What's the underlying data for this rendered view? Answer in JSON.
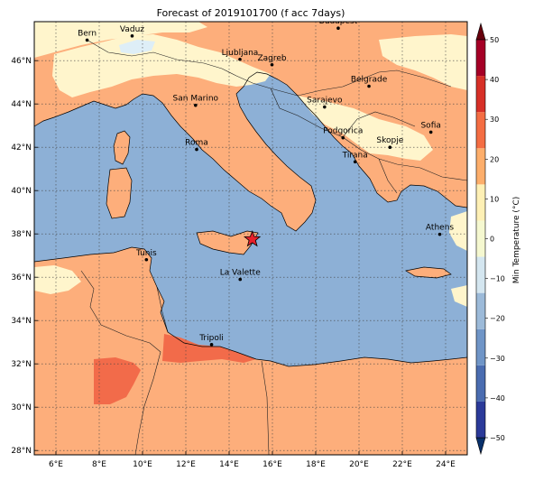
{
  "title": "Forecast of 2019101700 (f acc 7days)",
  "map": {
    "lon_ticks": [
      "6°E",
      "8°E",
      "10°E",
      "12°E",
      "14°E",
      "16°E",
      "18°E",
      "20°E",
      "22°E",
      "24°E"
    ],
    "lat_ticks": [
      "46°N",
      "44°N",
      "42°N",
      "40°N",
      "38°N",
      "36°N",
      "34°N",
      "32°N",
      "30°N",
      "28°N"
    ],
    "extent": {
      "lon_min": 5,
      "lon_max": 25,
      "lat_min": 27.8,
      "lat_max": 47.8
    },
    "cities": [
      {
        "name": "Bern",
        "lon": 7.44,
        "lat": 46.95
      },
      {
        "name": "Vaduz",
        "lon": 9.52,
        "lat": 47.14
      },
      {
        "name": "Budapest",
        "lon": 19.04,
        "lat": 47.5
      },
      {
        "name": "Ljubljana",
        "lon": 14.5,
        "lat": 46.06
      },
      {
        "name": "Zagreb",
        "lon": 15.98,
        "lat": 45.81
      },
      {
        "name": "Belgrade",
        "lon": 20.46,
        "lat": 44.82
      },
      {
        "name": "San Marino",
        "lon": 12.45,
        "lat": 43.94
      },
      {
        "name": "Sarajevo",
        "lon": 18.41,
        "lat": 43.86
      },
      {
        "name": "Sofia",
        "lon": 23.32,
        "lat": 42.7
      },
      {
        "name": "Podgorica",
        "lon": 19.26,
        "lat": 42.44
      },
      {
        "name": "Skopje",
        "lon": 21.43,
        "lat": 42.0
      },
      {
        "name": "Roma",
        "lon": 12.5,
        "lat": 41.9
      },
      {
        "name": "Tirana",
        "lon": 19.82,
        "lat": 41.33
      },
      {
        "name": "Athens",
        "lon": 23.73,
        "lat": 37.98
      },
      {
        "name": "Tunis",
        "lon": 10.18,
        "lat": 36.81
      },
      {
        "name": "La Valette",
        "lon": 14.51,
        "lat": 35.9
      },
      {
        "name": "Tripoli",
        "lon": 13.19,
        "lat": 32.89
      }
    ],
    "marker": {
      "name": "star-marker",
      "lon": 15.07,
      "lat": 37.75
    }
  },
  "colorbar": {
    "label": "Min Temperature (°C)",
    "ticks": [
      "50",
      "40",
      "30",
      "20",
      "10",
      "0",
      "−10",
      "−20",
      "−30",
      "−40",
      "−50"
    ],
    "colors": [
      "#08306b",
      "#2b3a99",
      "#4a6cb0",
      "#6f95c7",
      "#9cbad9",
      "#d4e6f0",
      "#f5f8d0",
      "#fef0b5",
      "#fdae6b",
      "#f46d43",
      "#d73027",
      "#a50026",
      "#67000d"
    ]
  },
  "colors": {
    "sea": "#8db0d6",
    "warm": "#fdae7b",
    "mild": "#fff5cc",
    "cool": "#deeef7",
    "hot": "#f26b4a",
    "marker": "#e8202a"
  }
}
